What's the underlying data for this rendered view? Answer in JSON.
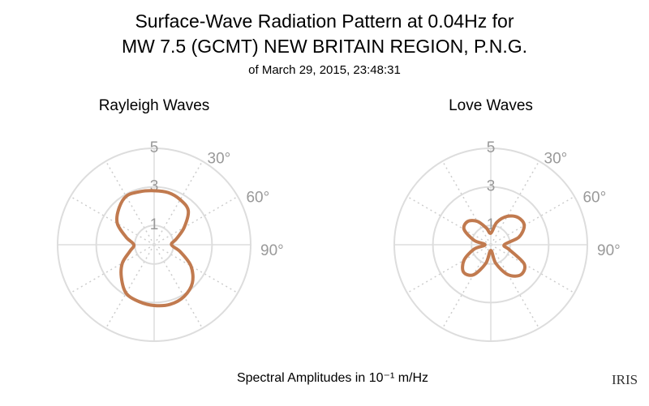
{
  "title": [
    "Surface-Wave Radiation Pattern at 0.04Hz for",
    "MW 7.5 (GCMT) NEW BRITAIN REGION, P.N.G."
  ],
  "subtitle": "of March 29, 2015, 23:48:31",
  "caption": "Spectral Amplitudes in 10⁻¹ m/Hz",
  "logo": "IRIS",
  "chart_data": [
    {
      "type": "polar",
      "title": "Rayleigh Waves",
      "theta": [
        0,
        15,
        30,
        45,
        60,
        75,
        90,
        105,
        120,
        135,
        150,
        165,
        180,
        195,
        210,
        225,
        240,
        255,
        270,
        285,
        300,
        315,
        330,
        345
      ],
      "series": [
        {
          "color": "#c17a4f",
          "values": [
            2.8,
            2.8,
            2.7,
            2.5,
            1.8,
            1.2,
            0.9,
            1.4,
            2.2,
            2.8,
            3.1,
            3.2,
            3.15,
            3.05,
            2.9,
            2.4,
            1.9,
            1.3,
            1.05,
            1.5,
            2.2,
            2.6,
            2.9,
            2.85
          ]
        }
      ],
      "rlim": [
        0,
        5
      ],
      "rticks": [
        1,
        3,
        5
      ],
      "thetaticks": [
        {
          "value": 30,
          "label": "30°"
        },
        {
          "value": 60,
          "label": "60°"
        },
        {
          "value": 90,
          "label": "90°"
        }
      ]
    },
    {
      "type": "polar",
      "title": "Love Waves",
      "theta": [
        0,
        15,
        30,
        45,
        60,
        75,
        90,
        105,
        120,
        135,
        150,
        165,
        180,
        195,
        210,
        225,
        240,
        255,
        270,
        285,
        300,
        315,
        330,
        345
      ],
      "series": [
        {
          "color": "#c17a4f",
          "values": [
            0.6,
            1.2,
            1.7,
            2.0,
            2.0,
            1.5,
            0.7,
            1.0,
            2.0,
            2.2,
            1.8,
            1.0,
            0.3,
            1.0,
            1.8,
            2.0,
            1.6,
            0.9,
            0.3,
            0.9,
            1.6,
            1.7,
            1.4,
            0.9
          ]
        }
      ],
      "rlim": [
        0,
        5
      ],
      "rticks": [
        1,
        3,
        5
      ],
      "thetaticks": [
        {
          "value": 30,
          "label": "30°"
        },
        {
          "value": 60,
          "label": "60°"
        },
        {
          "value": 90,
          "label": "90°"
        }
      ]
    }
  ]
}
